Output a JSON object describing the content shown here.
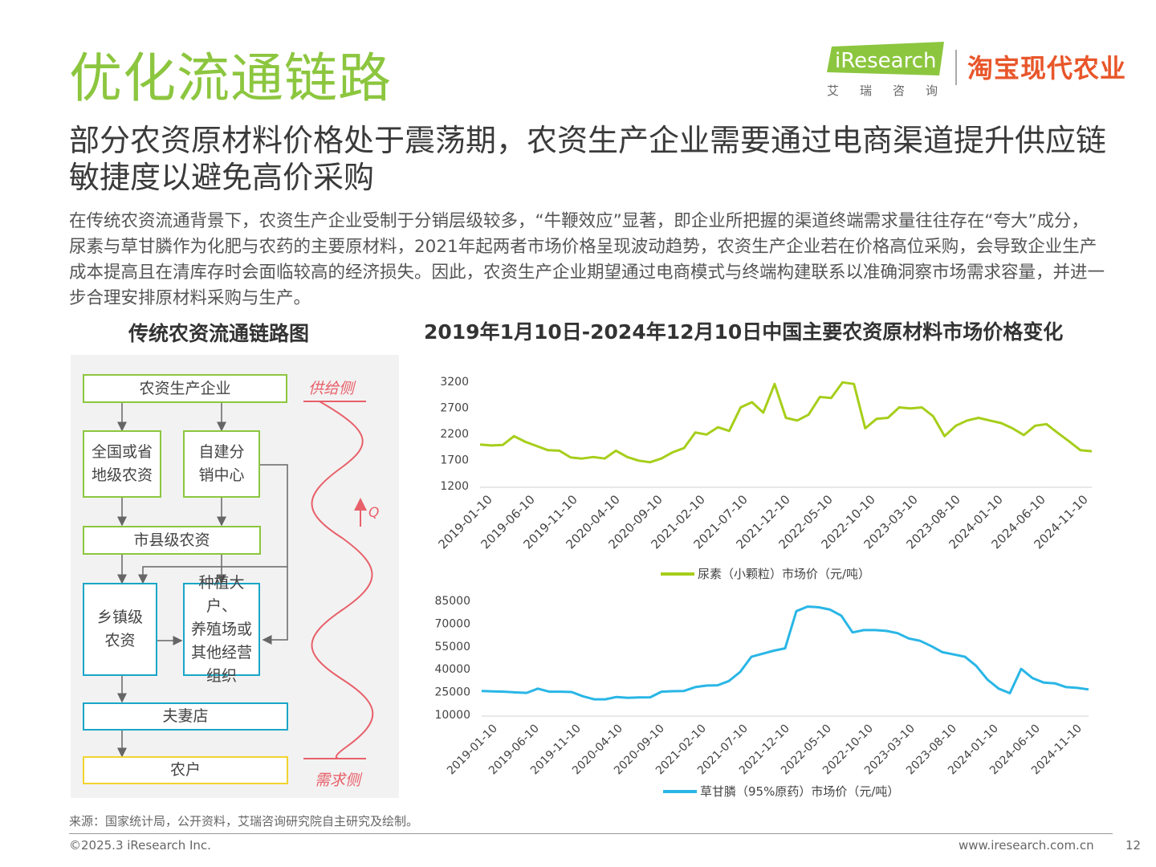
{
  "page": {
    "title": "优化流通链路",
    "subtitle": "部分农资原材料价格处于震荡期，农资生产企业需要通过电商渠道提升供应链敏捷度以避免高价采购",
    "body": "在传统农资流通背景下，农资生产企业受制于分销层级较多，“牛鞭效应”显著，即企业所把握的渠道终端需求量往往存在“夸大”成分，尿素与草甘膦作为化肥与农药的主要原材料，2021年起两者市场价格呈现波动趋势，农资生产企业若在价格高位采购，会导致企业生产成本提高且在清库存时会面临较高的经济损失。因此，农资生产企业期望通过电商模式与终端构建联系以准确洞察市场需求容量，并进一步合理安排原材料采购与生产。",
    "source": "来源：国家统计局，公开资料，艾瑞咨询研究院自主研究及绘制。",
    "copyright": "©2025.3 iResearch Inc.",
    "website": "www.iresearch.com.cn",
    "page_number": "12"
  },
  "logos": {
    "iresearch": "iResearch",
    "iresearch_cn": "艾瑞咨询",
    "taobao": "淘宝现代农业",
    "iresearch_color": "#8cc63f",
    "taobao_color": "#e8562a"
  },
  "diagram": {
    "title": "传统农资流通链路图",
    "nodes": {
      "producer": "农资生产企业",
      "national": "全国或省\n地级农资",
      "self_dist": "自建分\n销中心",
      "county": "市县级农资",
      "town": "乡镇级\n农资",
      "large": "种植大户、\n养殖场或\n其他经营\n组织",
      "shop": "夫妻店",
      "farmer": "农户"
    },
    "supply_label": "供给侧",
    "demand_label": "需求侧",
    "q_label": "Q"
  },
  "charts_title": "2019年1月10日-2024年12月10日中国主要农资原材料市场价格变化",
  "chart_data": [
    {
      "type": "line",
      "x_ticks": [
        "2019-01-10",
        "2019-06-10",
        "2019-11-10",
        "2020-04-10",
        "2020-09-10",
        "2021-02-10",
        "2021-07-10",
        "2021-12-10",
        "2022-05-10",
        "2022-10-10",
        "2023-03-10",
        "2023-08-10",
        "2024-01-10",
        "2024-06-10",
        "2024-11-10"
      ],
      "y_ticks": [
        1200,
        1700,
        2200,
        2700,
        3200
      ],
      "ylim": [
        1200,
        3200
      ],
      "color": "#a6ce1a",
      "legend": "尿素（小颗粒）市场价（元/吨）",
      "legend_position": "bottom",
      "series": [
        {
          "values": [
            1990,
            1970,
            1980,
            2150,
            2040,
            1960,
            1880,
            1870,
            1740,
            1720,
            1750,
            1720,
            1870,
            1750,
            1680,
            1650,
            1720,
            1840,
            1920,
            2220,
            2180,
            2320,
            2250,
            2700,
            2800,
            2600,
            3150,
            2500,
            2450,
            2560,
            2900,
            2880,
            3180,
            3150,
            2300,
            2480,
            2500,
            2700,
            2680,
            2700,
            2530,
            2150,
            2350,
            2450,
            2500,
            2450,
            2400,
            2300,
            2170,
            2350,
            2380,
            2210,
            2050,
            1880,
            1860
          ]
        }
      ]
    },
    {
      "type": "line",
      "x_ticks": [
        "2019-01-10",
        "2019-06-10",
        "2019-11-10",
        "2020-04-10",
        "2020-09-10",
        "2021-02-10",
        "2021-07-10",
        "2021-12-10",
        "2022-05-10",
        "2022-10-10",
        "2023-03-10",
        "2023-08-10",
        "2024-01-10",
        "2024-06-10",
        "2024-11-10"
      ],
      "y_ticks": [
        10000,
        25000,
        40000,
        55000,
        70000,
        85000
      ],
      "ylim": [
        10000,
        85000
      ],
      "color": "#29b6e6",
      "legend": "草甘膦（95%原药）市场价（元/吨）",
      "legend_position": "bottom",
      "series": [
        {
          "values": [
            25500,
            25200,
            25000,
            24500,
            24200,
            27000,
            25000,
            25000,
            24800,
            22000,
            20000,
            20000,
            21500,
            21000,
            21200,
            21300,
            25000,
            25300,
            25500,
            28000,
            29000,
            29200,
            32000,
            38000,
            48000,
            50000,
            52000,
            53500,
            78000,
            81000,
            80500,
            79000,
            75000,
            64000,
            65500,
            65500,
            65000,
            63500,
            60000,
            58500,
            55000,
            51000,
            49500,
            48000,
            42000,
            33000,
            27000,
            24000,
            40000,
            34000,
            31000,
            30500,
            28000,
            27500,
            26500
          ]
        }
      ]
    }
  ]
}
